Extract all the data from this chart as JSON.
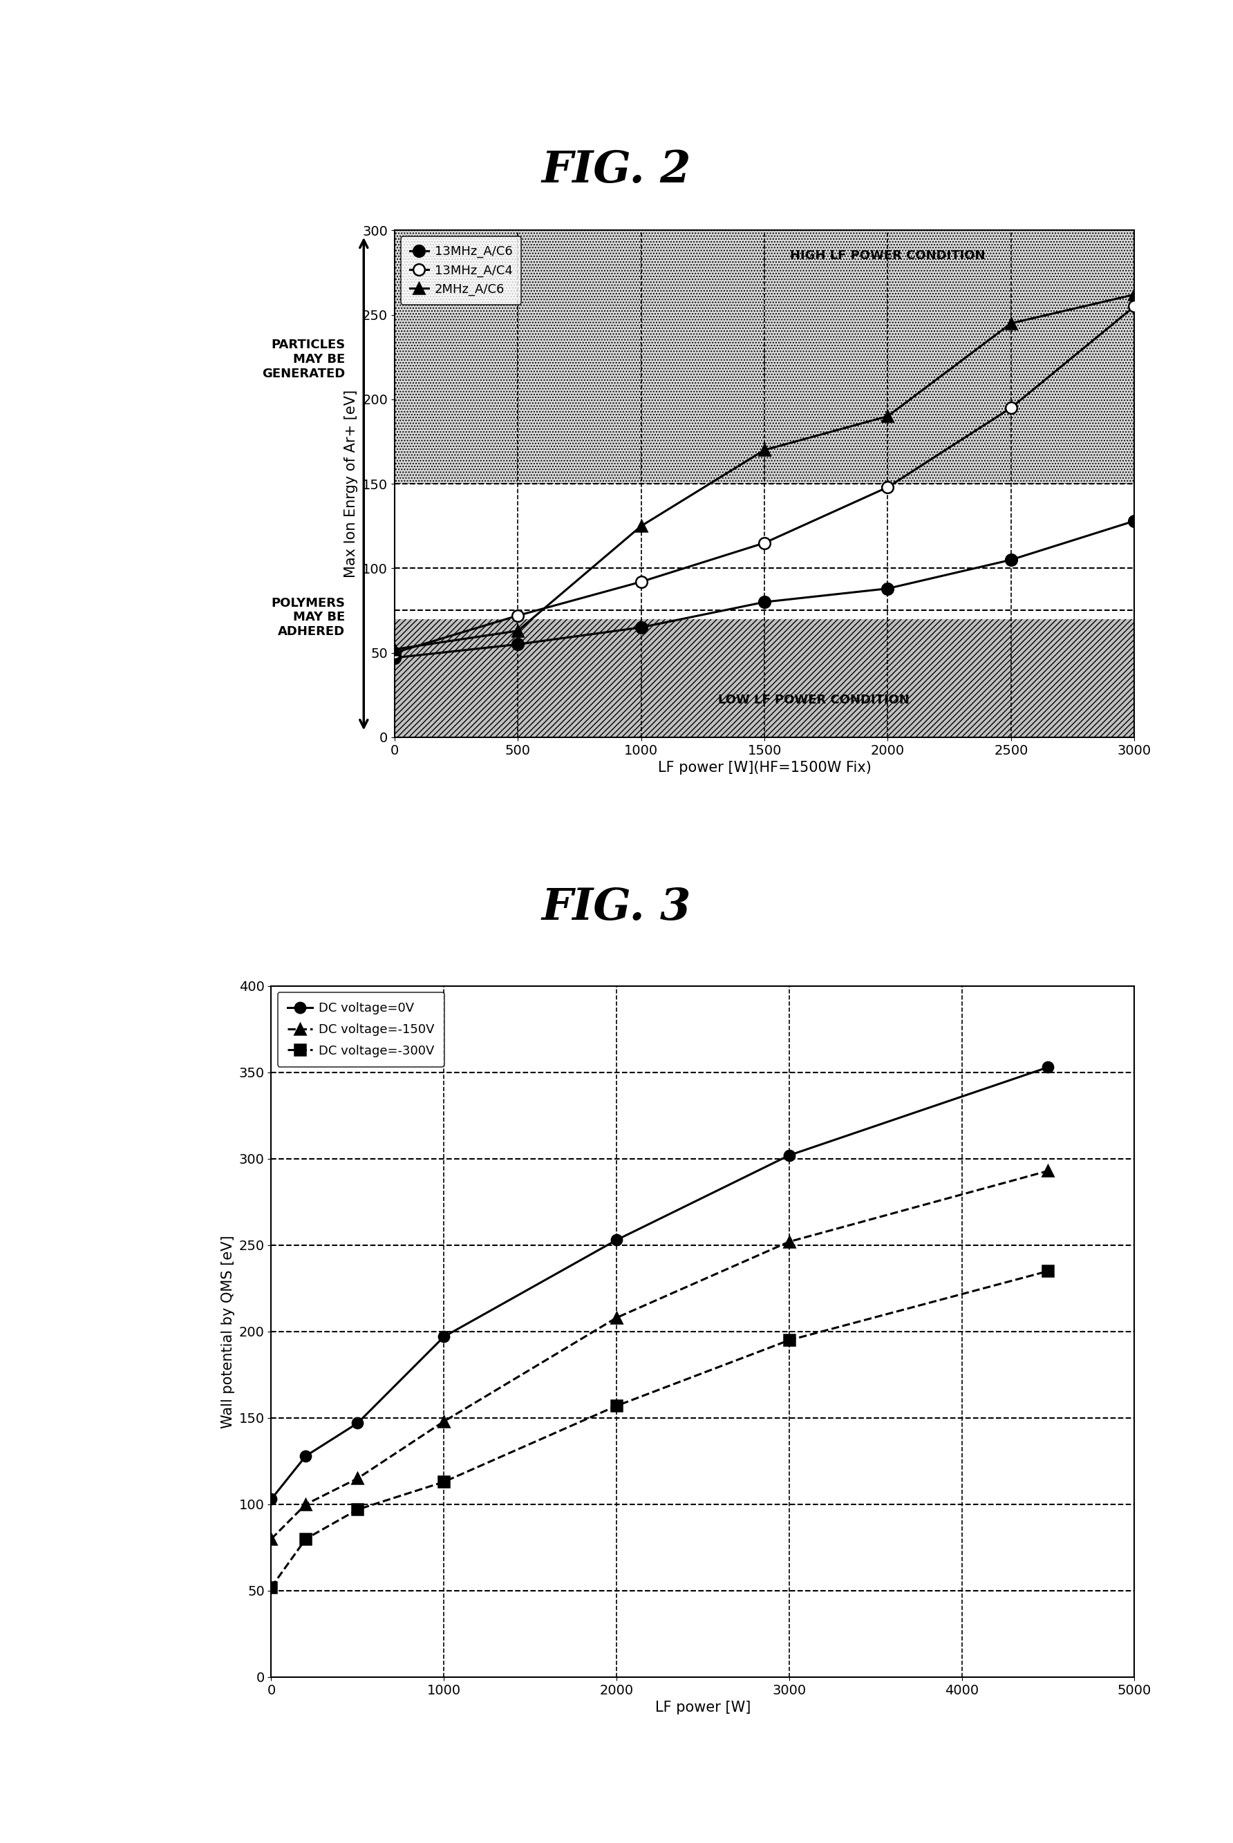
{
  "fig2_title": "FIG. 2",
  "fig3_title": "FIG. 3",
  "fig2": {
    "series": [
      {
        "label": "13MHz_A/C6",
        "x": [
          0,
          500,
          1000,
          1500,
          2000,
          2500,
          3000
        ],
        "y": [
          47,
          55,
          65,
          80,
          88,
          105,
          128
        ],
        "marker": "o",
        "filled": true,
        "linestyle": "-"
      },
      {
        "label": "13MHz_A/C4",
        "x": [
          0,
          500,
          1000,
          1500,
          2000,
          2500,
          3000
        ],
        "y": [
          50,
          72,
          92,
          115,
          148,
          195,
          255
        ],
        "marker": "o",
        "filled": false,
        "linestyle": "-"
      },
      {
        "label": "2MHz_A/C6",
        "x": [
          0,
          500,
          1000,
          1500,
          2000,
          2500,
          3000
        ],
        "y": [
          52,
          63,
          125,
          170,
          190,
          245,
          262
        ],
        "marker": "^",
        "filled": true,
        "linestyle": "-"
      }
    ],
    "xlabel": "LF power [W](HF=1500W Fix)",
    "ylabel": "Max Ion Enrgy of Ar+ [eV]",
    "xlim": [
      0,
      3000
    ],
    "ylim": [
      0,
      300
    ],
    "xticks": [
      0,
      500,
      1000,
      1500,
      2000,
      2500,
      3000
    ],
    "yticks": [
      0,
      50,
      100,
      150,
      200,
      250,
      300
    ],
    "low_lf_ymax": 70,
    "high_lf_ymin": 150,
    "high_lf_label": "HIGH LF POWER CONDITION",
    "low_lf_label": "LOW LF POWER CONDITION",
    "hline_dashed": [
      75,
      100,
      150
    ],
    "vlines_dashed": [
      500,
      1000,
      1500,
      2000,
      2500
    ],
    "left_top_label": "PARTICLES\nMAY BE\nGENERATED",
    "left_bottom_label": "POLYMERS\nMAY BE\nADHERED"
  },
  "fig3": {
    "series": [
      {
        "label": "DC voltage=0V",
        "x": [
          0,
          200,
          500,
          1000,
          2000,
          3000,
          4500
        ],
        "y": [
          103,
          128,
          147,
          197,
          253,
          302,
          353
        ],
        "marker": "o",
        "filled": true,
        "linestyle": "-"
      },
      {
        "label": "DC voltage=-150V",
        "x": [
          0,
          200,
          500,
          1000,
          2000,
          3000,
          4500
        ],
        "y": [
          80,
          100,
          115,
          148,
          208,
          252,
          293
        ],
        "marker": "^",
        "filled": true,
        "linestyle": "--"
      },
      {
        "label": "DC voltage=-300V",
        "x": [
          0,
          200,
          500,
          1000,
          2000,
          3000,
          4500
        ],
        "y": [
          52,
          80,
          97,
          113,
          157,
          195,
          235
        ],
        "marker": "s",
        "filled": true,
        "linestyle": "--"
      }
    ],
    "xlabel": "LF power [W]",
    "ylabel": "Wall potential by QMS [eV]",
    "xlim": [
      0,
      5000
    ],
    "ylim": [
      0,
      400
    ],
    "xticks": [
      0,
      1000,
      2000,
      3000,
      4000,
      5000
    ],
    "yticks": [
      0,
      50,
      100,
      150,
      200,
      250,
      300,
      350,
      400
    ],
    "hlines_dashed": [
      50,
      100,
      150,
      200,
      250,
      300,
      350
    ],
    "vlines_dashed": [
      1000,
      2000,
      3000,
      4000
    ]
  }
}
